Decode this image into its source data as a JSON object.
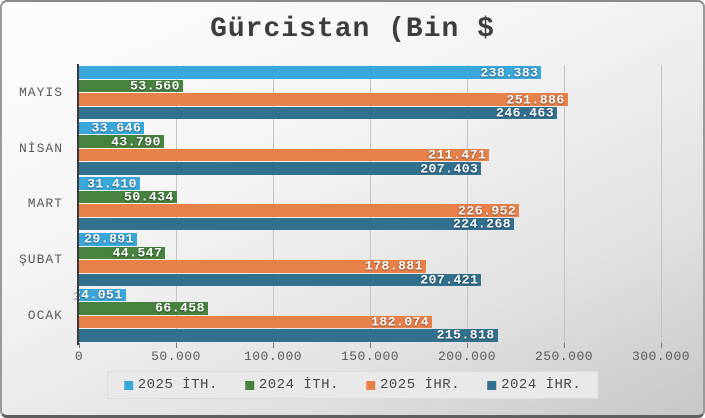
{
  "title": "Gürcistan (Bin $",
  "chart_data": {
    "type": "bar",
    "orientation": "horizontal",
    "title": "Gürcistan (Bin $",
    "categories": [
      "MAYIS",
      "NİSAN",
      "MART",
      "ŞUBAT",
      "OCAK"
    ],
    "series": [
      {
        "name": "2025 İTH.",
        "color": "#3aa7db",
        "values": [
          238383,
          33646,
          31410,
          29891,
          24051
        ],
        "labels": [
          "238.383",
          "33.646",
          "31.410",
          "29.891",
          "24.051"
        ]
      },
      {
        "name": "2024 İTH.",
        "color": "#47823f",
        "values": [
          53560,
          43790,
          50434,
          44547,
          66458
        ],
        "labels": [
          "53.560",
          "43.790",
          "50.434",
          "44.547",
          "66.458"
        ]
      },
      {
        "name": "2025 İHR.",
        "color": "#e8804a",
        "values": [
          251886,
          211471,
          226952,
          178881,
          182074
        ],
        "labels": [
          "251.886",
          "211.471",
          "226.952",
          "178.881",
          "182.074"
        ]
      },
      {
        "name": "2024 İHR.",
        "color": "#31718f",
        "values": [
          246463,
          207403,
          224268,
          207421,
          215818
        ],
        "labels": [
          "246.463",
          "207.403",
          "224.268",
          "207.421",
          "215.818"
        ]
      }
    ],
    "x_axis": {
      "min": 0,
      "max": 300000,
      "tick_step": 50000,
      "tick_labels": [
        "0",
        "50.000",
        "100.000",
        "150.000",
        "200.000",
        "250.000",
        "300.000"
      ],
      "grid": true
    },
    "legend_position": "bottom"
  },
  "layout_colors": {
    "title_text": "#3d3d3d",
    "axis_text": "#595959",
    "gridline": "#c5c5c5",
    "legend_bg": "#e9e9e9"
  }
}
